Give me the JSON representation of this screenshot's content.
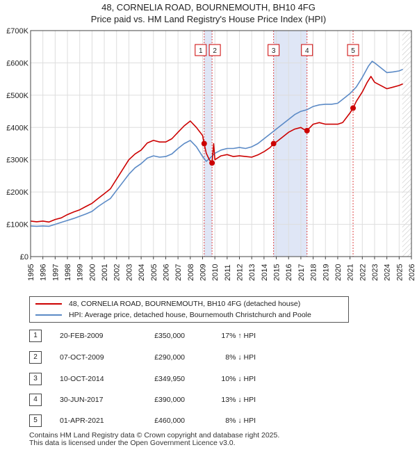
{
  "chart_data": {
    "type": "line",
    "title": "48, CORNELIA ROAD, BOURNEMOUTH, BH10 4FG",
    "subtitle": "Price paid vs. HM Land Registry's House Price Index (HPI)",
    "xlim": [
      1995,
      2026
    ],
    "ylim": [
      0,
      700000
    ],
    "x_ticks": [
      "1995",
      "1996",
      "1997",
      "1998",
      "1999",
      "2000",
      "2001",
      "2002",
      "2003",
      "2004",
      "2005",
      "2006",
      "2007",
      "2008",
      "2009",
      "2010",
      "2011",
      "2012",
      "2013",
      "2014",
      "2015",
      "2016",
      "2017",
      "2018",
      "2019",
      "2020",
      "2021",
      "2022",
      "2023",
      "2024",
      "2025",
      "2026"
    ],
    "y_ticks": [
      {
        "value": 0,
        "label": "£0"
      },
      {
        "value": 100000,
        "label": "£100K"
      },
      {
        "value": 200000,
        "label": "£200K"
      },
      {
        "value": 300000,
        "label": "£300K"
      },
      {
        "value": 400000,
        "label": "£400K"
      },
      {
        "value": 500000,
        "label": "£500K"
      },
      {
        "value": 600000,
        "label": "£600K"
      },
      {
        "value": 700000,
        "label": "£700K"
      }
    ],
    "grid": true,
    "future_hatch_from": 2025.25,
    "series": [
      {
        "name": "48, CORNELIA ROAD, BOURNEMOUTH, BH10 4FG (detached house)",
        "color": "#cc0000",
        "points": [
          [
            1995.0,
            110000
          ],
          [
            1995.5,
            108000
          ],
          [
            1996.0,
            110000
          ],
          [
            1996.5,
            107000
          ],
          [
            1997.0,
            115000
          ],
          [
            1997.5,
            120000
          ],
          [
            1998.0,
            130000
          ],
          [
            1998.5,
            138000
          ],
          [
            1999.0,
            145000
          ],
          [
            1999.5,
            155000
          ],
          [
            2000.0,
            165000
          ],
          [
            2000.5,
            180000
          ],
          [
            2001.0,
            195000
          ],
          [
            2001.5,
            210000
          ],
          [
            2002.0,
            240000
          ],
          [
            2002.5,
            270000
          ],
          [
            2003.0,
            300000
          ],
          [
            2003.5,
            318000
          ],
          [
            2004.0,
            330000
          ],
          [
            2004.5,
            352000
          ],
          [
            2005.0,
            360000
          ],
          [
            2005.5,
            355000
          ],
          [
            2006.0,
            355000
          ],
          [
            2006.5,
            365000
          ],
          [
            2007.0,
            385000
          ],
          [
            2007.5,
            405000
          ],
          [
            2008.0,
            420000
          ],
          [
            2008.5,
            400000
          ],
          [
            2009.0,
            375000
          ],
          [
            2009.13,
            350000
          ],
          [
            2009.3,
            320000
          ],
          [
            2009.55,
            300000
          ],
          [
            2009.77,
            290000
          ],
          [
            2009.9,
            350000
          ],
          [
            2010.0,
            300000
          ],
          [
            2010.5,
            312000
          ],
          [
            2011.0,
            316000
          ],
          [
            2011.5,
            310000
          ],
          [
            2012.0,
            312000
          ],
          [
            2012.5,
            310000
          ],
          [
            2013.0,
            308000
          ],
          [
            2013.5,
            315000
          ],
          [
            2014.0,
            325000
          ],
          [
            2014.5,
            338000
          ],
          [
            2014.78,
            349950
          ],
          [
            2015.0,
            355000
          ],
          [
            2015.5,
            370000
          ],
          [
            2016.0,
            385000
          ],
          [
            2016.5,
            395000
          ],
          [
            2017.0,
            400000
          ],
          [
            2017.2,
            395000
          ],
          [
            2017.5,
            390000
          ],
          [
            2018.0,
            410000
          ],
          [
            2018.5,
            415000
          ],
          [
            2019.0,
            410000
          ],
          [
            2019.5,
            410000
          ],
          [
            2020.0,
            410000
          ],
          [
            2020.4,
            415000
          ],
          [
            2020.7,
            430000
          ],
          [
            2021.0,
            445000
          ],
          [
            2021.25,
            460000
          ],
          [
            2021.5,
            480000
          ],
          [
            2022.0,
            510000
          ],
          [
            2022.4,
            540000
          ],
          [
            2022.7,
            558000
          ],
          [
            2023.0,
            540000
          ],
          [
            2023.5,
            530000
          ],
          [
            2024.0,
            520000
          ],
          [
            2024.5,
            525000
          ],
          [
            2025.0,
            530000
          ],
          [
            2025.3,
            535000
          ]
        ]
      },
      {
        "name": "HPI: Average price, detached house, Bournemouth Christchurch and Poole",
        "color": "#5b8ac6",
        "points": [
          [
            1995.0,
            95000
          ],
          [
            1995.5,
            94000
          ],
          [
            1996.0,
            95000
          ],
          [
            1996.5,
            94000
          ],
          [
            1997.0,
            100000
          ],
          [
            1997.5,
            106000
          ],
          [
            1998.0,
            112000
          ],
          [
            1998.5,
            118000
          ],
          [
            1999.0,
            125000
          ],
          [
            1999.5,
            132000
          ],
          [
            2000.0,
            140000
          ],
          [
            2000.5,
            155000
          ],
          [
            2001.0,
            168000
          ],
          [
            2001.5,
            180000
          ],
          [
            2002.0,
            205000
          ],
          [
            2002.5,
            230000
          ],
          [
            2003.0,
            255000
          ],
          [
            2003.5,
            275000
          ],
          [
            2004.0,
            288000
          ],
          [
            2004.5,
            305000
          ],
          [
            2005.0,
            312000
          ],
          [
            2005.5,
            308000
          ],
          [
            2006.0,
            310000
          ],
          [
            2006.5,
            318000
          ],
          [
            2007.0,
            335000
          ],
          [
            2007.5,
            350000
          ],
          [
            2008.0,
            360000
          ],
          [
            2008.5,
            340000
          ],
          [
            2009.0,
            310000
          ],
          [
            2009.3,
            295000
          ],
          [
            2009.6,
            305000
          ],
          [
            2010.0,
            320000
          ],
          [
            2010.5,
            330000
          ],
          [
            2011.0,
            335000
          ],
          [
            2011.5,
            335000
          ],
          [
            2012.0,
            338000
          ],
          [
            2012.5,
            335000
          ],
          [
            2013.0,
            340000
          ],
          [
            2013.5,
            350000
          ],
          [
            2014.0,
            365000
          ],
          [
            2014.5,
            380000
          ],
          [
            2015.0,
            395000
          ],
          [
            2015.5,
            410000
          ],
          [
            2016.0,
            425000
          ],
          [
            2016.5,
            440000
          ],
          [
            2017.0,
            450000
          ],
          [
            2017.5,
            455000
          ],
          [
            2018.0,
            465000
          ],
          [
            2018.5,
            470000
          ],
          [
            2019.0,
            472000
          ],
          [
            2019.5,
            472000
          ],
          [
            2020.0,
            475000
          ],
          [
            2020.5,
            490000
          ],
          [
            2021.0,
            505000
          ],
          [
            2021.5,
            525000
          ],
          [
            2022.0,
            555000
          ],
          [
            2022.5,
            590000
          ],
          [
            2022.8,
            605000
          ],
          [
            2023.0,
            600000
          ],
          [
            2023.5,
            585000
          ],
          [
            2024.0,
            570000
          ],
          [
            2024.5,
            572000
          ],
          [
            2025.0,
            575000
          ],
          [
            2025.3,
            580000
          ]
        ]
      }
    ],
    "transactions": [
      {
        "id": "1",
        "date": "20-FEB-2009",
        "x": 2009.13,
        "price_value": 350000,
        "price": "£350,000",
        "hpi": "17% ↑ HPI"
      },
      {
        "id": "2",
        "date": "07-OCT-2009",
        "x": 2009.77,
        "price_value": 290000,
        "price": "£290,000",
        "hpi": "8% ↓ HPI"
      },
      {
        "id": "3",
        "date": "10-OCT-2014",
        "x": 2014.78,
        "price_value": 349950,
        "price": "£349,950",
        "hpi": "10% ↓ HPI"
      },
      {
        "id": "4",
        "date": "30-JUN-2017",
        "x": 2017.5,
        "price_value": 390000,
        "price": "£390,000",
        "hpi": "13% ↓ HPI"
      },
      {
        "id": "5",
        "date": "01-APR-2021",
        "x": 2021.25,
        "price_value": 460000,
        "price": "£460,000",
        "hpi": "8% ↓ HPI"
      }
    ],
    "shaded_ranges": [
      [
        2009.13,
        2009.77
      ],
      [
        2014.78,
        2017.5
      ]
    ]
  },
  "footer": {
    "line1": "Contains HM Land Registry data © Crown copyright and database right 2025.",
    "line2": "This data is licensed under the Open Government Licence v3.0."
  }
}
